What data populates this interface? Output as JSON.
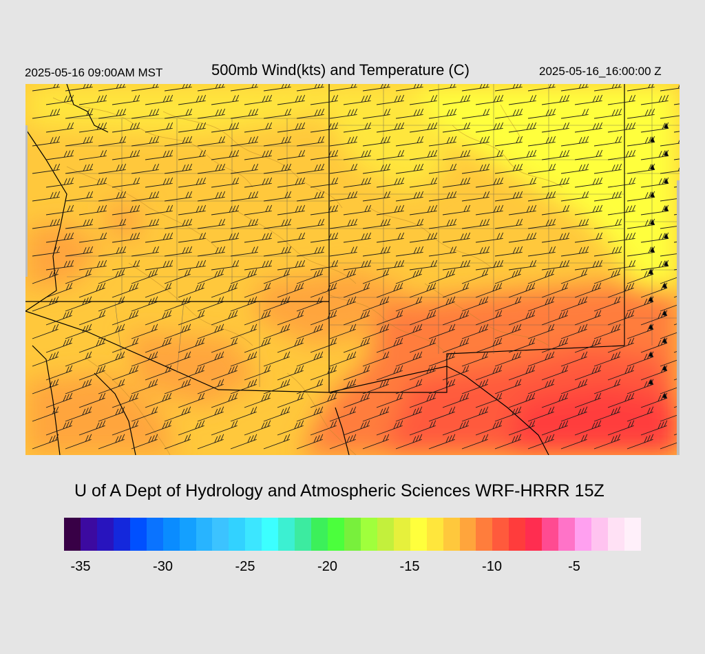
{
  "header": {
    "valid_local": "2025-05-16 09:00AM MST",
    "title": "500mb Wind(kts) and Temperature (C)",
    "valid_utc": "2025-05-16_16:00:00 Z"
  },
  "credit": "U of A Dept of Hydrology and Atmospheric Sciences WRF-HRRR 15Z",
  "colorbar": {
    "colors": [
      "#380046",
      "#3c0aa0",
      "#2814be",
      "#1428dc",
      "#0050ff",
      "#0a73ff",
      "#0a8cff",
      "#14a0ff",
      "#28b4ff",
      "#3cc3ff",
      "#32d2ff",
      "#3ce6ff",
      "#3cffff",
      "#3cf0d2",
      "#3ceba0",
      "#3cf05a",
      "#4bff3c",
      "#78f03c",
      "#a0ff3c",
      "#c3f03c",
      "#e6f03c",
      "#ffff3c",
      "#ffe63c",
      "#ffc83c",
      "#ffa53c",
      "#ff7d3c",
      "#ff5a3c",
      "#ff3c3c",
      "#ff2d50",
      "#ff4b91",
      "#ff73c8",
      "#ffa0f0",
      "#ffc3f0",
      "#ffe1f5",
      "#fff0fa"
    ],
    "labels": [
      "-35",
      "-30",
      "-25",
      "-20",
      "-15",
      "-10",
      "-5"
    ]
  },
  "map": {
    "field": "500mb temperature (C) with wind barbs (kts)",
    "temperature_colors": {
      "coldest": "#ffff3c",
      "cold": "#ffe63c",
      "mid": "#ffc83c",
      "warmer": "#ffa53c",
      "warm": "#ff7d3c",
      "warmest": "#ff3c3c"
    }
  }
}
